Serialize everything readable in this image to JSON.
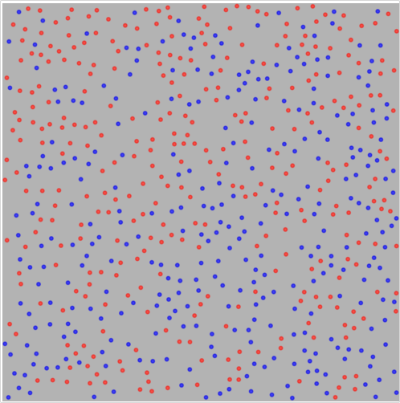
{
  "simulation": {
    "background_color": "#b3b3b3",
    "species": [
      {
        "color": "#e8342e"
      },
      {
        "color": "#2323e0"
      }
    ]
  }
}
